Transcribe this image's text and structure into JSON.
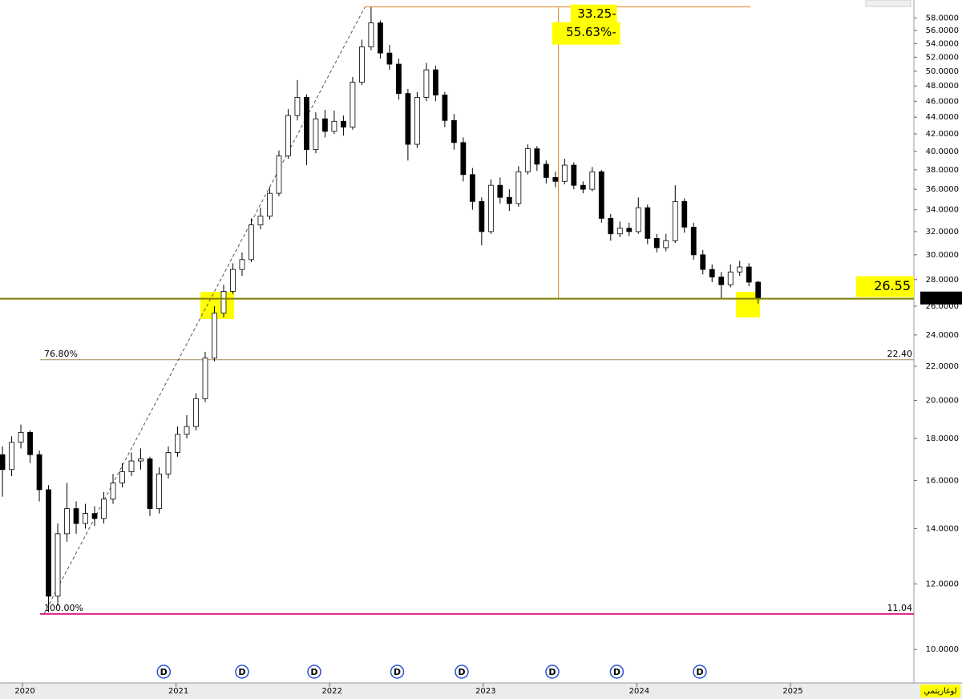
{
  "chart_data": {
    "type": "candlestick",
    "log_scale": true,
    "grid": false,
    "xlim": [
      2019.854,
      2025.804
    ],
    "xticks": [
      2020,
      2021,
      2022,
      2023,
      2024,
      2025
    ],
    "ylim": [
      9.11,
      60.97
    ],
    "yticks": [
      {
        "value": 10,
        "label": "10.0000"
      },
      {
        "value": 12,
        "label": "12.0000"
      },
      {
        "value": 14,
        "label": "14.0000"
      },
      {
        "value": 16,
        "label": "16.0000"
      },
      {
        "value": 18,
        "label": "18.0000"
      },
      {
        "value": 20,
        "label": "20.0000"
      },
      {
        "value": 22,
        "label": "22.0000"
      },
      {
        "value": 24,
        "label": "24.0000"
      },
      {
        "value": 26,
        "label": "26.0000"
      },
      {
        "value": 28,
        "label": "28.0000"
      },
      {
        "value": 30,
        "label": "30.0000"
      },
      {
        "value": 32,
        "label": "32.0000"
      },
      {
        "value": 34,
        "label": "34.0000"
      },
      {
        "value": 36,
        "label": "36.0000"
      },
      {
        "value": 38,
        "label": "38.0000"
      },
      {
        "value": 40,
        "label": "40.0000"
      },
      {
        "value": 42,
        "label": "42.0000"
      },
      {
        "value": 44,
        "label": "44.0000"
      },
      {
        "value": 46,
        "label": "46.0000"
      },
      {
        "value": 48,
        "label": "48.0000"
      },
      {
        "value": 50,
        "label": "50.0000"
      },
      {
        "value": 52,
        "label": "52.0000"
      },
      {
        "value": 54,
        "label": "54.0000"
      },
      {
        "value": 56,
        "label": "56.0000"
      },
      {
        "value": 58,
        "label": "58.0000"
      }
    ],
    "up_color": "#ffffff",
    "down_color": "#000000",
    "candles": {
      "x": [
        2019.87,
        2019.93,
        2019.99,
        2020.05,
        2020.11,
        2020.17,
        2020.23,
        2020.29,
        2020.35,
        2020.41,
        2020.47,
        2020.53,
        2020.59,
        2020.65,
        2020.71,
        2020.77,
        2020.83,
        2020.89,
        2020.95,
        2021.01,
        2021.07,
        2021.13,
        2021.19,
        2021.25,
        2021.31,
        2021.37,
        2021.43,
        2021.49,
        2021.55,
        2021.61,
        2021.67,
        2021.73,
        2021.79,
        2021.85,
        2021.91,
        2021.97,
        2022.03,
        2022.09,
        2022.15,
        2022.21,
        2022.27,
        2022.33,
        2022.39,
        2022.45,
        2022.51,
        2022.57,
        2022.63,
        2022.69,
        2022.75,
        2022.81,
        2022.87,
        2022.93,
        2022.99,
        2023.05,
        2023.11,
        2023.17,
        2023.23,
        2023.29,
        2023.35,
        2023.41,
        2023.47,
        2023.53,
        2023.59,
        2023.65,
        2023.71,
        2023.77,
        2023.83,
        2023.89,
        2023.95,
        2024.01,
        2024.07,
        2024.13,
        2024.19,
        2024.25,
        2024.31,
        2024.37,
        2024.43,
        2024.49,
        2024.55,
        2024.61,
        2024.67,
        2024.73,
        2024.79
      ],
      "open": [
        17.2,
        16.5,
        17.8,
        18.3,
        17.2,
        15.6,
        11.6,
        13.8,
        14.8,
        14.2,
        14.6,
        14.4,
        15.2,
        15.9,
        16.4,
        16.9,
        17.0,
        14.8,
        16.3,
        17.3,
        18.2,
        18.6,
        20.1,
        22.5,
        25.5,
        27.1,
        28.8,
        29.6,
        32.6,
        33.4,
        35.6,
        39.5,
        44.2,
        46.5,
        40.2,
        43.8,
        42.3,
        43.5,
        42.8,
        48.5,
        53.5,
        57.2,
        52.6,
        51.0,
        47.0,
        40.8,
        46.5,
        50.2,
        46.8,
        43.6,
        41.0,
        37.5,
        34.8,
        32.0,
        36.4,
        35.2,
        34.6,
        37.8,
        40.3,
        38.6,
        37.2,
        36.8,
        38.5,
        36.4,
        36.0,
        37.8,
        33.2,
        31.8,
        32.3,
        32.0,
        34.2,
        31.4,
        30.6,
        31.2,
        34.8,
        32.4,
        30.0,
        28.8,
        28.2,
        27.6,
        28.6,
        29.0,
        27.8
      ],
      "high": [
        17.6,
        18.1,
        18.7,
        18.4,
        17.4,
        15.8,
        14.2,
        15.9,
        15.1,
        15.0,
        14.9,
        15.5,
        16.3,
        16.8,
        17.3,
        17.5,
        17.1,
        16.6,
        17.6,
        18.6,
        19.2,
        20.4,
        22.9,
        26.0,
        27.6,
        29.3,
        30.2,
        33.2,
        34.2,
        36.2,
        40.1,
        45.0,
        48.8,
        46.9,
        44.6,
        44.9,
        44.8,
        44.2,
        49.2,
        54.6,
        59.8,
        57.6,
        53.8,
        51.8,
        47.6,
        47.2,
        51.2,
        50.8,
        47.2,
        44.4,
        41.6,
        38.2,
        35.2,
        37.0,
        37.2,
        36.0,
        38.4,
        40.8,
        40.6,
        39.0,
        37.8,
        39.2,
        38.8,
        36.8,
        38.3,
        38.0,
        33.6,
        32.9,
        32.8,
        35.2,
        34.5,
        31.8,
        31.8,
        36.4,
        35.1,
        32.8,
        30.4,
        29.2,
        28.6,
        29.2,
        29.5,
        29.3,
        27.9
      ],
      "low": [
        15.3,
        16.2,
        17.5,
        16.8,
        15.1,
        11.1,
        11.3,
        13.5,
        13.8,
        14.0,
        14.1,
        14.2,
        15.0,
        15.7,
        16.2,
        16.5,
        14.5,
        14.6,
        16.1,
        17.1,
        18.0,
        18.4,
        19.9,
        22.3,
        25.2,
        26.9,
        28.3,
        29.4,
        32.2,
        33.1,
        35.3,
        39.2,
        43.6,
        38.5,
        39.8,
        41.6,
        42.0,
        41.8,
        42.5,
        48.1,
        53.0,
        51.8,
        50.2,
        46.2,
        39.0,
        40.4,
        46.0,
        46.0,
        42.8,
        40.2,
        36.8,
        34.0,
        30.8,
        31.8,
        34.6,
        33.9,
        34.3,
        37.5,
        37.9,
        36.6,
        36.2,
        36.5,
        36.0,
        35.6,
        35.8,
        32.8,
        31.2,
        31.5,
        31.6,
        31.8,
        30.9,
        30.2,
        30.3,
        31.0,
        31.9,
        29.6,
        28.4,
        27.8,
        26.5,
        27.4,
        28.3,
        27.5,
        26.2
      ],
      "close": [
        16.5,
        17.8,
        18.3,
        17.2,
        15.6,
        11.6,
        13.8,
        14.8,
        14.2,
        14.6,
        14.4,
        15.2,
        15.9,
        16.4,
        16.9,
        17.0,
        14.8,
        16.3,
        17.3,
        18.2,
        18.6,
        20.1,
        22.5,
        25.5,
        27.1,
        28.8,
        29.6,
        32.6,
        33.4,
        35.6,
        39.5,
        44.2,
        46.5,
        40.2,
        43.8,
        42.3,
        43.5,
        42.8,
        48.5,
        53.5,
        57.2,
        52.6,
        51.0,
        47.0,
        40.8,
        46.5,
        50.2,
        46.8,
        43.6,
        41.0,
        37.5,
        34.8,
        32.0,
        36.4,
        35.2,
        34.6,
        37.8,
        40.3,
        38.6,
        37.2,
        36.8,
        38.5,
        36.4,
        36.0,
        37.8,
        33.2,
        31.8,
        32.3,
        32.0,
        34.2,
        31.4,
        30.6,
        31.2,
        34.8,
        32.4,
        30.0,
        28.8,
        28.2,
        27.6,
        28.6,
        29.0,
        27.8,
        26.6
      ]
    },
    "support_level": 26.55,
    "support_color": "#7f7f00",
    "last_price": {
      "value": 26.6,
      "label": "26.6000"
    },
    "fib_levels": [
      {
        "name": "76.80%",
        "level": {
          "value": 22.4,
          "label": "22.40"
        },
        "color": "#a08c5a"
      },
      {
        "name": "100.00%",
        "level": 11.04,
        "color": "#e0208c"
      }
    ],
    "measure": {
      "x": 2023.49,
      "x_start": 2022.23,
      "x_end": 2024.74,
      "top": 59.8,
      "change_label": "33.25-",
      "percent_label": "55.63%-",
      "color": "#e8822a"
    },
    "trendline": {
      "x": [
        2020.14,
        2022.23
      ],
      "y": [
        11.04,
        59.8
      ]
    },
    "dividends": {
      "label": "D",
      "x": [
        2020.92,
        2021.43,
        2021.9,
        2022.44,
        2022.86,
        2023.45,
        2023.87,
        2024.41
      ]
    },
    "scale_label": "لوغاريتمي"
  }
}
